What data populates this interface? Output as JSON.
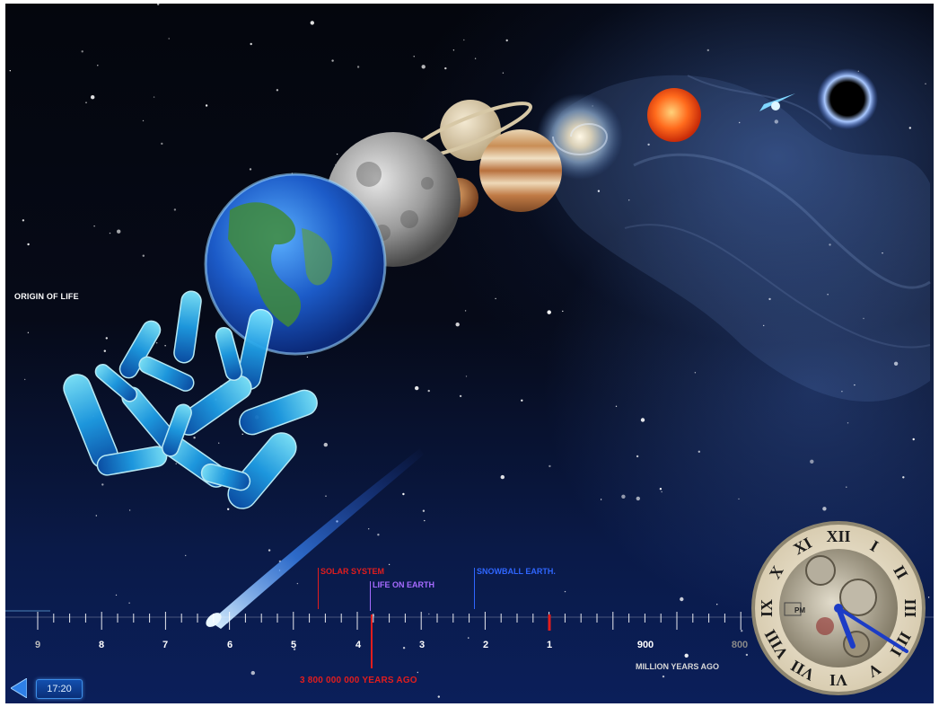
{
  "labels": {
    "origin_of_life": "ORIGIN OF LIFE",
    "years_ago": "3 800 000 000  YEARS AGO",
    "million_years_ago": "MILLION YEARS AGO"
  },
  "events": [
    {
      "name": "SOLAR SYSTEM",
      "color": "#e21d1d"
    },
    {
      "name": "LIFE ON EARTH",
      "color": "#a66bff"
    },
    {
      "name": "SNOWBALL EARTH.",
      "color": "#2f66ff"
    }
  ],
  "timeline_ticks": [
    "9",
    "8",
    "7",
    "6",
    "5",
    "4",
    "3",
    "2",
    "1",
    "900",
    "800"
  ],
  "controls": {
    "time_badge": "17:20"
  },
  "clock": {
    "numerals": [
      "XII",
      "I",
      "II",
      "III",
      "IIII",
      "V",
      "VI",
      "VII",
      "VIII",
      "IX",
      "X",
      "XI"
    ],
    "am_pm": "PM"
  },
  "objects": [
    "bacteria",
    "earth",
    "moon",
    "saturn",
    "jupiter",
    "mars",
    "galaxy",
    "sun",
    "nebula",
    "black-hole",
    "comet"
  ]
}
